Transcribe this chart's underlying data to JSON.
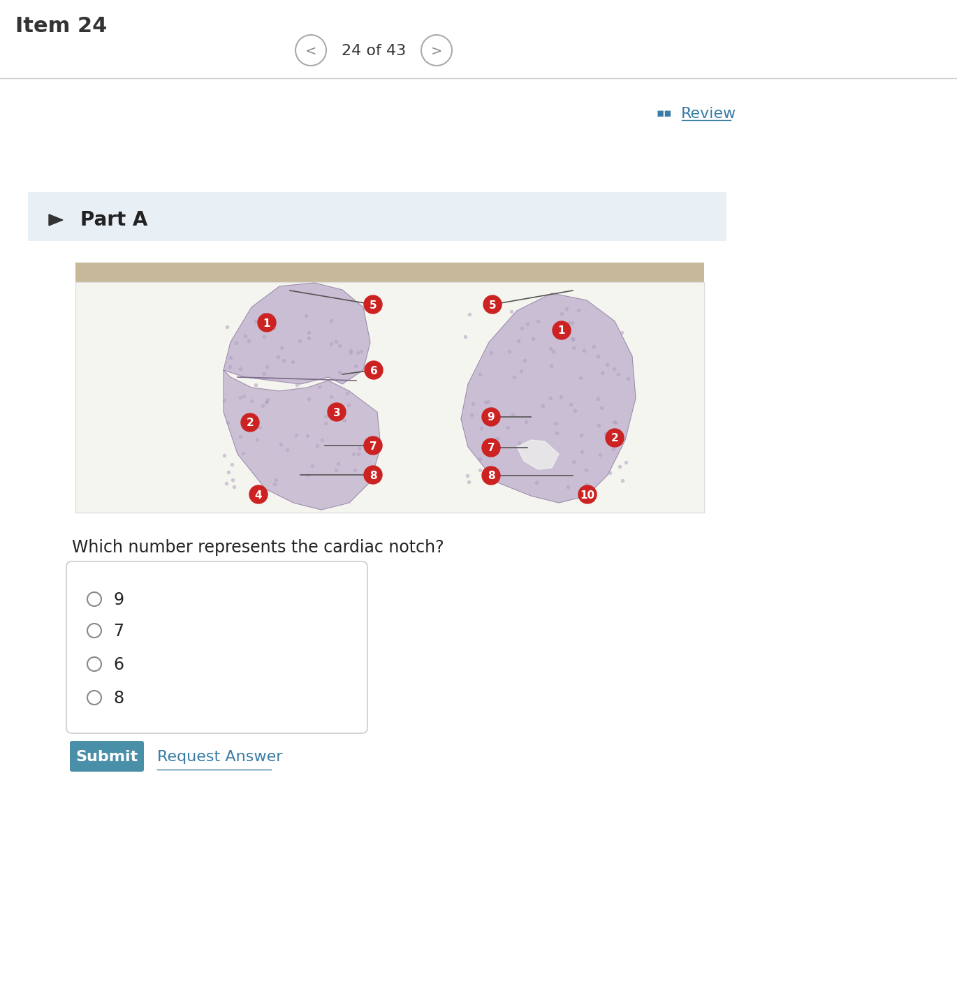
{
  "bg_color": "#ffffff",
  "item_label": "Item 24",
  "nav_text": "24 of 43",
  "review_text": "Review",
  "part_label": "Part A",
  "question_text": "Which number represents the cardiac notch?",
  "choices": [
    "9",
    "7",
    "6",
    "8"
  ],
  "submit_text": "Submit",
  "request_answer_text": "Request Answer",
  "submit_color": "#4a8fa8",
  "submit_text_color": "#ffffff",
  "request_color": "#3a7ca5",
  "item_label_color": "#333333",
  "nav_color": "#666666",
  "part_bg": "#e8eef2",
  "image_box_bg": "#d4c9a8",
  "lung_fill": "#c5b8d0",
  "label_circle_color": "#cc2222",
  "label_text_color": "#ffffff",
  "line_color": "#444444",
  "separator_color": "#cccccc",
  "choice_box_border": "#cccccc",
  "radio_color": "#888888"
}
